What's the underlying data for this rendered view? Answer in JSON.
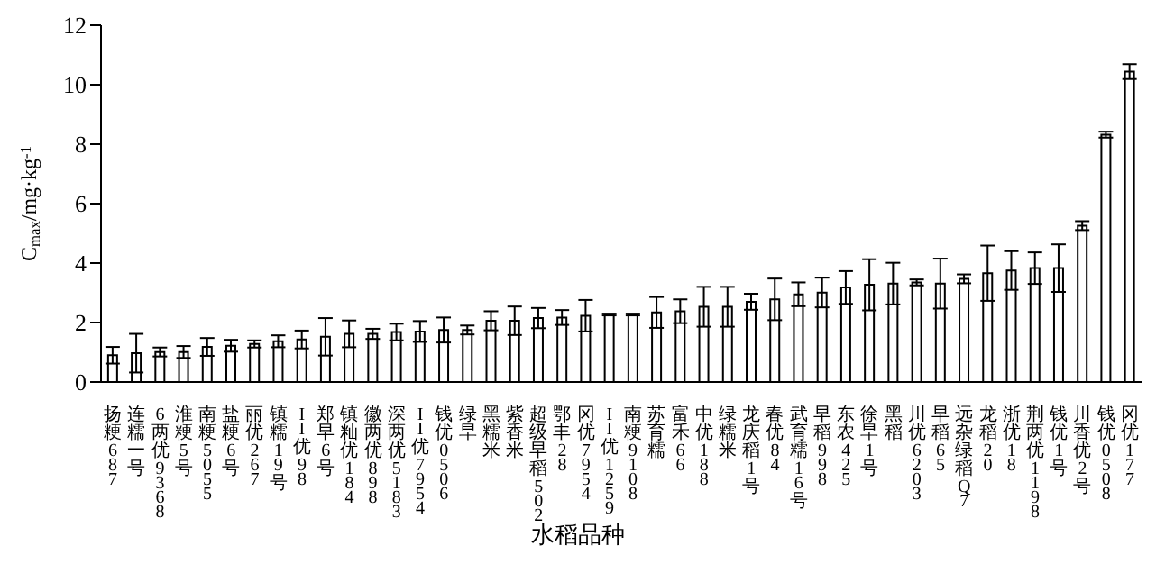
{
  "chart_data": {
    "type": "bar",
    "xlabel": "水稻品种",
    "ylabel": "C$_{max}$/mg·kg$^{-1}$",
    "categories": [
      "扬粳687",
      "连糯一号",
      "6两优9368",
      "淮粳5号",
      "南粳5055",
      "盐粳6号",
      "丽优267",
      "镇糯19号",
      "II优98",
      "郑早6号",
      "镇籼优184",
      "徽两优898",
      "深两优5183",
      "II优7954",
      "钱优0506",
      "绿旱",
      "黑糯米",
      "紫香米",
      "超级早稻502",
      "鄂丰28",
      "冈优7954",
      "II优1259",
      "南粳9108",
      "苏育糯",
      "富禾66",
      "中优188",
      "绿糯米",
      "龙庆稻1号",
      "春优84",
      "武育糯16号",
      "早稻998",
      "东农425",
      "徐旱1号",
      "黑稻",
      "川优6203",
      "早稻65",
      "远杂绿稻Q7",
      "龙稻20",
      "浙优18",
      "荆两优1198",
      "钱优1号",
      "川香优2号",
      "钱优0508",
      "冈优177"
    ],
    "values": [
      0.9,
      0.97,
      1.01,
      1.01,
      1.18,
      1.22,
      1.28,
      1.37,
      1.43,
      1.52,
      1.62,
      1.62,
      1.68,
      1.7,
      1.75,
      1.75,
      2.06,
      2.06,
      2.15,
      2.17,
      2.23,
      2.27,
      2.27,
      2.34,
      2.38,
      2.53,
      2.53,
      2.7,
      2.78,
      2.95,
      3.01,
      3.18,
      3.27,
      3.31,
      3.35,
      3.31,
      3.47,
      3.66,
      3.75,
      3.83,
      3.83,
      5.26,
      8.32,
      10.44
    ],
    "errors": [
      0.28,
      0.65,
      0.15,
      0.2,
      0.3,
      0.2,
      0.12,
      0.2,
      0.3,
      0.63,
      0.45,
      0.17,
      0.28,
      0.35,
      0.42,
      0.15,
      0.32,
      0.48,
      0.34,
      0.25,
      0.53,
      0.03,
      0.03,
      0.52,
      0.4,
      0.67,
      0.67,
      0.27,
      0.7,
      0.4,
      0.5,
      0.55,
      0.86,
      0.7,
      0.1,
      0.84,
      0.15,
      0.93,
      0.65,
      0.53,
      0.8,
      0.15,
      0.1,
      0.25
    ],
    "color": "#ffffff",
    "ylim": [
      0,
      12
    ],
    "yticks": [
      0,
      2,
      4,
      6,
      8,
      10,
      12
    ],
    "grid": false,
    "legend": false
  }
}
